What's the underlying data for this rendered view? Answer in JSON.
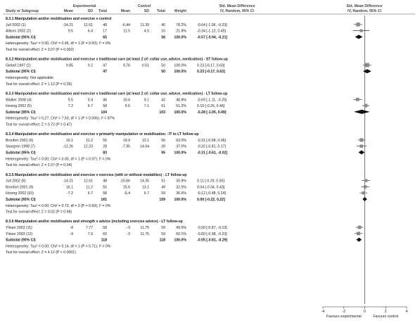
{
  "chart_data": {
    "type": "forest",
    "header": {
      "study": "Study or Subgroup",
      "experimental": "Experimental",
      "control": "Control",
      "mean": "Mean",
      "sd": "SD",
      "total": "Total",
      "weight": "Weight",
      "smd_title": "Std. Mean Difference",
      "smd_method": "IV, Random, 95% CI"
    },
    "xaxis": {
      "ticks": [
        "-4",
        "-2",
        "0",
        "2",
        "4"
      ],
      "range": [
        -4,
        4
      ],
      "left_label": "Favours experimental",
      "right_label": "Favours control"
    },
    "groups": [
      {
        "title": "8.3.1 Manipulation and/or mobilisation and exercise v control",
        "studies": [
          {
            "name": "Jull 2002 (1)",
            "e_mean": "-14.21",
            "e_sd": "12.61",
            "e_n": "48",
            "c_mean": "-6.44",
            "c_sd": "11.39",
            "c_n": "46",
            "weight": "78.2%",
            "ci": "-0.64 [-1.06, -0.23]",
            "est": -0.64,
            "lo": -1.06,
            "hi": -0.23
          },
          {
            "name": "Allison 2002 (2)",
            "e_mean": "9.5",
            "e_sd": "6.4",
            "e_n": "17",
            "c_mean": "11.5",
            "c_sd": "4.5",
            "c_n": "10",
            "weight": "21.8%",
            "ci": "-0.34 [-1.12, 0.45]",
            "est": -0.34,
            "lo": -1.12,
            "hi": 0.45
          }
        ],
        "subtotal": {
          "label": "Subtotal (95% CI)",
          "e_n": "65",
          "c_n": "56",
          "weight": "100.0%",
          "ci": "-0.57 [-0.94, -0.21]",
          "est": -0.57,
          "lo": -0.94,
          "hi": -0.21
        },
        "heterogeneity": "Heterogeneity: Tau² = 0.00; Chi² = 0.45, df = 1 (P = 0.50); I² = 0%",
        "overall": "Test for overall effect: Z = 3.07 (P = 0.002)"
      },
      {
        "title": "8.3.2 Manipulation and/or mobilisation and exercise v traditional care (at least 2 of: collar use, advice, medication) - ST follow-up",
        "studies": [
          {
            "name": "Giebel 1997 (2)",
            "e_mean": "9.85",
            "e_sd": "0.2",
            "e_n": "47",
            "c_mean": "9.76",
            "c_sd": "0.51",
            "c_n": "50",
            "weight": "100.0%",
            "ci": "0.23 [-0.17, 0.63]",
            "est": 0.23,
            "lo": -0.17,
            "hi": 0.63
          }
        ],
        "subtotal": {
          "label": "Subtotal (95% CI)",
          "e_n": "47",
          "c_n": "50",
          "weight": "100.0%",
          "ci": "0.23 [-0.17, 0.63]",
          "est": 0.23,
          "lo": -0.17,
          "hi": 0.63
        },
        "heterogeneity": "Heterogeneity: Not applicable",
        "overall": "Test for overall effect: Z = 1.12 (P = 0.26)"
      },
      {
        "title": "8.3.3 Manipulation and/or mobilisation and exercise v traditional care (at least 2 of: collar use, advice, medication) - LT follow-up",
        "studies": [
          {
            "name": "Walker 2008 (4)",
            "e_mean": "5.5",
            "e_sd": "5.4",
            "e_n": "46",
            "c_mean": "10.6",
            "c_sd": "9.1",
            "c_n": "42",
            "weight": "48.8%",
            "ci": "-0.69 [-1.11, -0.25]",
            "est": -0.69,
            "lo": -1.11,
            "hi": -0.25
          },
          {
            "name": "Hoving 2002 (5)",
            "e_mean": "7.2",
            "e_sd": "6.7",
            "e_n": "58",
            "c_mean": "6.5",
            "c_sd": "7.1",
            "c_n": "61",
            "weight": "51.2%",
            "ci": "0.10 [-0.26, 0.46]",
            "est": 0.1,
            "lo": -0.26,
            "hi": 0.46
          }
        ],
        "subtotal": {
          "label": "Subtotal (95% CI)",
          "e_n": "104",
          "c_n": "103",
          "weight": "100.0%",
          "ci": "-0.28 [-1.05, 0.49]",
          "est": -0.28,
          "lo": -1.05,
          "hi": 0.49
        },
        "heterogeneity": "Heterogeneity: Tau² = 0.27; Chi² = 7.50, df = 1 (P = 0.006); I² = 87%",
        "overall": "Test for overall effect: Z = 0.72 (P = 0.47)"
      },
      {
        "title": "8.3.4 Manipulation and/or mobilisation and exercise v primarily manipulation or mobilisation - IT to LT follow-up",
        "studies": [
          {
            "name": "Bronfort 2001 (6)",
            "e_mean": "16.1",
            "e_sd": "11.2",
            "e_n": "55",
            "c_mean": "19.9",
            "c_sd": "13.1",
            "c_n": "56",
            "weight": "63.0%",
            "ci": "-0.31 [-0.68, 0.06]",
            "est": -0.31,
            "lo": -0.68,
            "hi": 0.06
          },
          {
            "name": "Skargren 1998 (7)",
            "e_mean": "-12.26",
            "e_sd": "12.23",
            "e_n": "28",
            "c_mean": "-7.95",
            "c_sd": "14.04",
            "c_n": "39",
            "weight": "37.0%",
            "ci": "-0.32 [-0.81, 0.17]",
            "est": -0.32,
            "lo": -0.81,
            "hi": 0.17
          }
        ],
        "subtotal": {
          "label": "Subtotal (95% CI)",
          "e_n": "83",
          "c_n": "95",
          "weight": "100.0%",
          "ci": "-0.31 [-0.61, -0.02]",
          "est": -0.31,
          "lo": -0.61,
          "hi": -0.02
        },
        "heterogeneity": "Heterogeneity: Tau² = 0.00; Chi² = 0.00, df = 1 (P = 0.97); I² = 0%",
        "overall": "Test for overall effect: Z = 2.07 (P = 0.04)"
      },
      {
        "title": "8.3.5 Manipulation and/or mobilisation and exercise v exercise (with or without modalities) - LT follow-up",
        "studies": [
          {
            "name": "Jull 2002 (8)",
            "e_mean": "-14.21",
            "e_sd": "12.61",
            "e_n": "48",
            "c_mean": "-15.66",
            "c_sd": "14.35",
            "c_n": "51",
            "weight": "30.9%",
            "ci": "0.11 [-0.29, 0.50]",
            "est": 0.11,
            "lo": -0.29,
            "hi": 0.5
          },
          {
            "name": "Bronfort 2001 (9)",
            "e_mean": "16.1",
            "e_sd": "11.2",
            "e_n": "55",
            "c_mean": "15.6",
            "c_sd": "13.1",
            "c_n": "49",
            "weight": "32.5%",
            "ci": "0.04 [-0.34, 0.43]",
            "est": 0.04,
            "lo": -0.34,
            "hi": 0.43
          },
          {
            "name": "Hoving 2002 (10)",
            "e_mean": "-7.2",
            "e_sd": "6.7",
            "e_n": "58",
            "c_mean": "-6.4",
            "c_sd": "6.7",
            "c_n": "59",
            "weight": "36.6%",
            "ci": "-0.12 [-0.48, 0.24]",
            "est": -0.12,
            "lo": -0.48,
            "hi": 0.24
          }
        ],
        "subtotal": {
          "label": "Subtotal (95% CI)",
          "e_n": "161",
          "c_n": "159",
          "weight": "100.0%",
          "ci": "0.00 [-0.22, 0.22]",
          "est": 0.0,
          "lo": -0.22,
          "hi": 0.22
        },
        "heterogeneity": "Heterogeneity: Tau² = 0.00; Chi² = 0.73, df = 2 (P = 0.69); I² = 0%",
        "overall": "Test for overall effect: Z = 0.02 (P = 0.98)"
      },
      {
        "title": "8.3.6 Manipulation and/or mobilisation and strength v advice (including exercise advice) - LT follow-up",
        "studies": [
          {
            "name": "Ylinen 2003 (11)",
            "e_mean": "-8",
            "e_sd": "7.77",
            "e_n": "58",
            "c_mean": "-3",
            "c_sd": "11.75",
            "c_n": "59",
            "weight": "49.9%",
            "ci": "-0.50 [-0.87, -0.13]",
            "est": -0.5,
            "lo": -0.87,
            "hi": -0.13
          },
          {
            "name": "Ylinen 2003 (12)",
            "e_mean": "-9",
            "e_sd": "7.9",
            "e_n": "60",
            "c_mean": "-3",
            "c_sd": "11.75",
            "c_n": "59",
            "weight": "50.1%",
            "ci": "-0.60 [-0.98, -0.23]",
            "est": -0.6,
            "lo": -0.98,
            "hi": -0.23
          }
        ],
        "subtotal": {
          "label": "Subtotal (95% CI)",
          "e_n": "118",
          "c_n": "118",
          "weight": "100.0%",
          "ci": "-0.55 [-0.81, -0.29]",
          "est": -0.55,
          "lo": -0.81,
          "hi": -0.29
        },
        "heterogeneity": "Heterogeneity: Tau² = 0.00; Chi² = 0.14, df = 1 (P = 0.71); I² = 0%",
        "overall": "Test for overall effect: Z = 4.12 (P < 0.0001)"
      }
    ]
  }
}
